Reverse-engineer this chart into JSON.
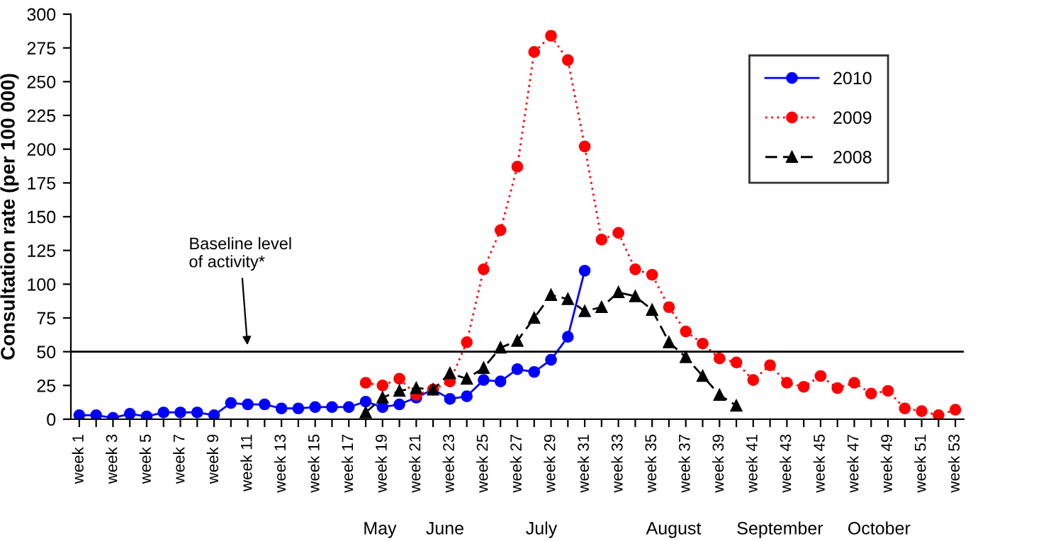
{
  "chart_data": {
    "type": "line",
    "ylabel": "Consultation rate (per 100 000)",
    "categories": [
      "week 1",
      null,
      "week 3",
      null,
      "week 5",
      null,
      "week 7",
      null,
      "week 9",
      null,
      "week 11",
      null,
      "week 13",
      null,
      "week 15",
      null,
      "week 17",
      null,
      "week 19",
      null,
      "week 21",
      null,
      "week 23",
      null,
      "week 25",
      null,
      "week 27",
      null,
      "week 29",
      null,
      "week 31",
      null,
      "week 33",
      null,
      "week 35",
      null,
      "week 37",
      null,
      "week 39",
      null,
      "week 41",
      null,
      "week 43",
      null,
      "week 45",
      null,
      "week 47",
      null,
      "week 49",
      null,
      "week 51",
      null,
      "week 53"
    ],
    "series": [
      {
        "name": "2010",
        "color": "#0000ff",
        "marker": "circle",
        "line_style": "solid",
        "values": [
          3,
          3,
          1,
          4,
          2,
          5,
          5,
          5,
          3,
          12,
          11,
          11,
          8,
          8,
          9,
          9,
          9,
          13,
          9,
          11,
          16,
          22,
          15,
          17,
          29,
          28,
          37,
          35,
          44,
          61,
          110,
          null,
          null,
          null,
          null,
          null,
          null,
          null,
          null,
          null,
          null,
          null,
          null,
          null,
          null,
          null,
          null,
          null,
          null,
          null,
          null,
          null,
          null
        ]
      },
      {
        "name": "2009",
        "color": "#ff0000",
        "marker": "circle",
        "line_style": "dotted",
        "values": [
          null,
          null,
          null,
          null,
          null,
          null,
          null,
          null,
          null,
          null,
          null,
          null,
          null,
          null,
          null,
          null,
          null,
          27,
          25,
          30,
          18,
          22,
          28,
          57,
          111,
          140,
          187,
          272,
          284,
          266,
          202,
          133,
          138,
          111,
          107,
          83,
          65,
          56,
          45,
          42,
          29,
          40,
          27,
          24,
          32,
          23,
          27,
          19,
          21,
          8,
          6,
          3,
          7
        ]
      },
      {
        "name": "2008",
        "color": "#000000",
        "marker": "triangle",
        "line_style": "dashed",
        "values": [
          null,
          null,
          null,
          null,
          null,
          null,
          null,
          null,
          null,
          null,
          null,
          null,
          null,
          null,
          null,
          null,
          null,
          5,
          16,
          21,
          23,
          22,
          34,
          30,
          38,
          53,
          58,
          75,
          92,
          89,
          80,
          83,
          94,
          91,
          81,
          57,
          46,
          32,
          18,
          10,
          null,
          null,
          null,
          null,
          null,
          null,
          null,
          null,
          null,
          null,
          null,
          null,
          null
        ]
      }
    ],
    "ylim": [
      0,
      300
    ],
    "yticks": [
      0,
      25,
      50,
      75,
      100,
      125,
      150,
      175,
      200,
      225,
      250,
      275,
      300
    ],
    "ref_lines": [
      {
        "axis": "y",
        "value": 50,
        "label": "Baseline level\nof activity*",
        "color": "#000000"
      }
    ],
    "annotations": [
      "May",
      "June",
      "July",
      "August",
      "September",
      "October"
    ],
    "grid": false,
    "legend": "top right"
  }
}
